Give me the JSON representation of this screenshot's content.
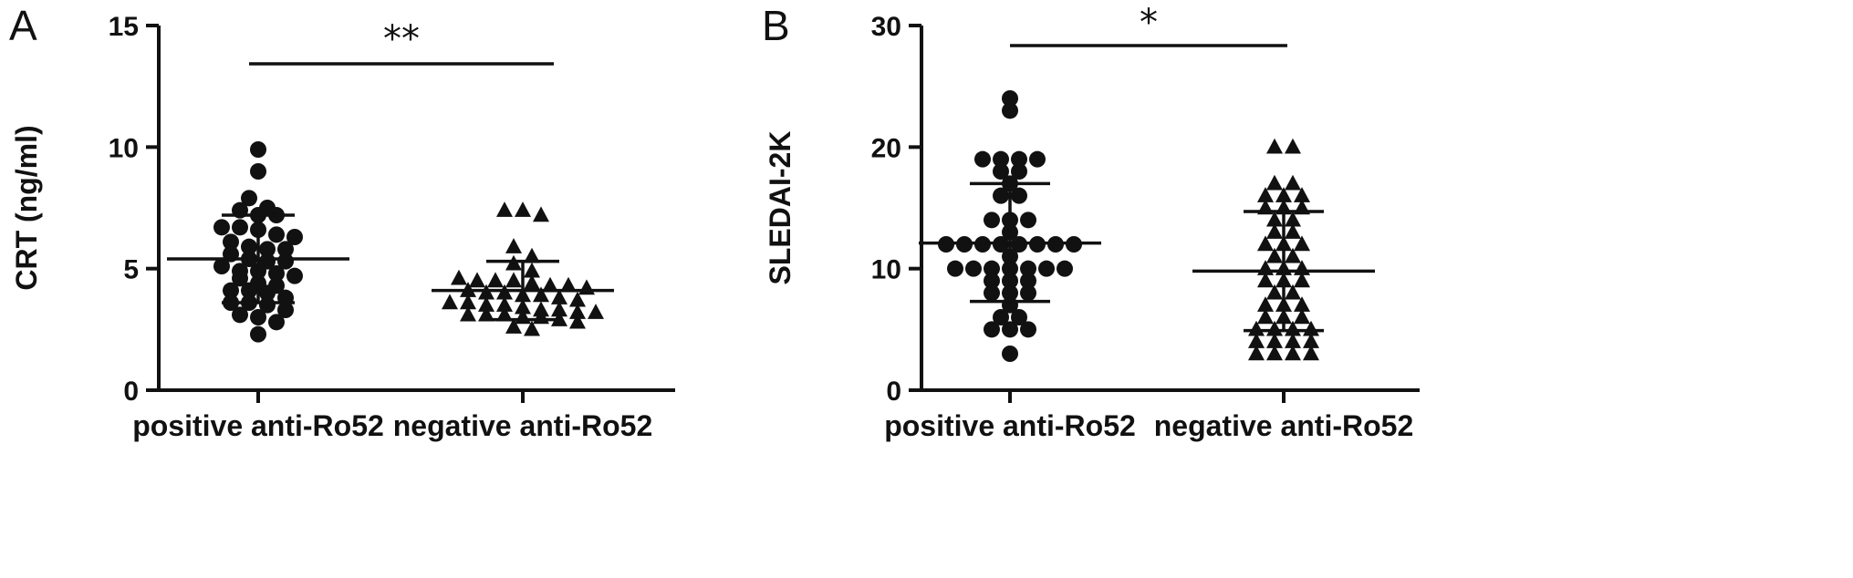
{
  "chart_data": [
    {
      "panel": "A",
      "type": "scatter",
      "ylabel": "CRT (ng/ml)",
      "ylim": [
        0,
        15
      ],
      "yticks": [
        "0",
        "5",
        "10",
        "15"
      ],
      "categories": [
        "positive anti-Ro52",
        "negative anti-Ro52"
      ],
      "significance": "**",
      "marker_color": "#111111",
      "series": [
        {
          "marker": "circle",
          "mean": 5.4,
          "sd_low": 3.6,
          "sd_high": 7.2,
          "values": [
            9.9,
            9.0,
            7.9,
            7.5,
            7.4,
            7.2,
            7.2,
            6.7,
            6.7,
            6.6,
            6.4,
            6.3,
            6.1,
            5.9,
            5.8,
            5.8,
            5.6,
            5.4,
            5.3,
            5.3,
            5.1,
            4.9,
            4.9,
            4.8,
            4.7,
            4.6,
            4.4,
            4.3,
            4.1,
            4.1,
            4.0,
            3.8,
            3.6,
            3.6,
            3.5,
            3.3,
            3.1,
            3.0,
            2.8,
            2.3
          ]
        },
        {
          "marker": "triangle",
          "mean": 4.1,
          "sd_low": 2.9,
          "sd_high": 5.3,
          "values": [
            7.4,
            7.4,
            7.2,
            5.9,
            5.5,
            5.2,
            4.9,
            4.6,
            4.5,
            4.5,
            4.5,
            4.4,
            4.3,
            4.3,
            4.2,
            4.1,
            4.0,
            4.0,
            3.9,
            3.9,
            3.8,
            3.7,
            3.6,
            3.6,
            3.5,
            3.5,
            3.4,
            3.3,
            3.3,
            3.2,
            3.2,
            3.1,
            3.1,
            3.1,
            3.0,
            3.0,
            2.9,
            2.8,
            2.6,
            2.5
          ]
        }
      ]
    },
    {
      "panel": "B",
      "type": "scatter",
      "ylabel": "SLEDAI-2K",
      "ylim": [
        0,
        30
      ],
      "yticks": [
        "0",
        "10",
        "20",
        "30"
      ],
      "categories": [
        "positive anti-Ro52",
        "negative anti-Ro52"
      ],
      "significance": "*",
      "marker_color": "#111111",
      "series": [
        {
          "marker": "circle",
          "mean": 12.1,
          "sd_low": 7.3,
          "sd_high": 17.0,
          "values": [
            24,
            23,
            19,
            19,
            19,
            19,
            18,
            18,
            17,
            16,
            16,
            14,
            14,
            14,
            13,
            12,
            12,
            12,
            12,
            12,
            12,
            12,
            12,
            11,
            10,
            10,
            10,
            10,
            10,
            10,
            10,
            9,
            9,
            9,
            8,
            8,
            8,
            7,
            6,
            6,
            5,
            5,
            5,
            3
          ]
        },
        {
          "marker": "triangle",
          "mean": 9.8,
          "sd_low": 4.9,
          "sd_high": 14.7,
          "values": [
            20,
            20,
            17,
            17,
            16,
            16,
            16,
            15,
            15,
            15,
            14,
            14,
            13,
            13,
            12,
            12,
            12,
            11,
            11,
            10,
            10,
            10,
            9,
            9,
            9,
            8,
            8,
            7,
            7,
            7,
            6,
            6,
            6,
            5,
            5,
            5,
            5,
            4,
            4,
            4,
            4,
            3,
            3,
            3,
            3
          ]
        }
      ]
    }
  ]
}
